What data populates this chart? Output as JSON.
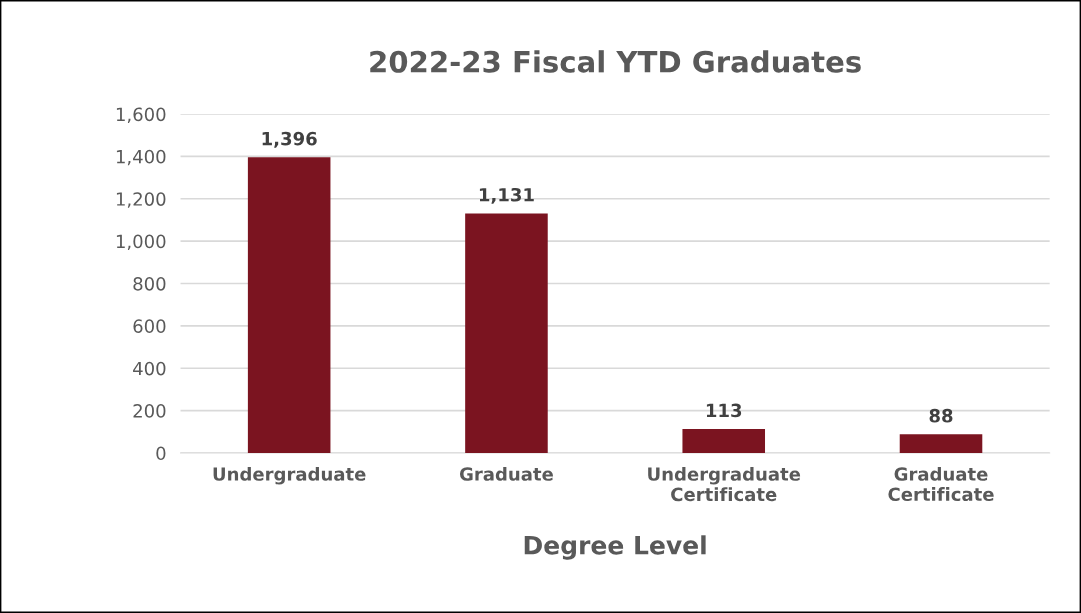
{
  "chart_data": {
    "type": "bar",
    "title": "2022-23 Fiscal YTD Graduates",
    "xlabel": "Degree Level",
    "categories": [
      "Undergraduate",
      "Graduate",
      "Undergraduate\nCertificate",
      "Graduate\nCertificate"
    ],
    "values": [
      1396,
      1131,
      113,
      88
    ],
    "color": "#7b1420",
    "value_labels": [
      "1,396",
      "1,131",
      "113",
      "88"
    ],
    "ylim": [
      0,
      1600
    ],
    "yticks": [
      0,
      200,
      400,
      600,
      800,
      {
        "value": 1000,
        "label": "1,000"
      },
      {
        "value": 1200,
        "label": "1,200"
      },
      {
        "value": 1400,
        "label": "1,400"
      },
      {
        "value": 1600,
        "label": "1,600"
      }
    ],
    "grid": "y",
    "legend": false
  }
}
